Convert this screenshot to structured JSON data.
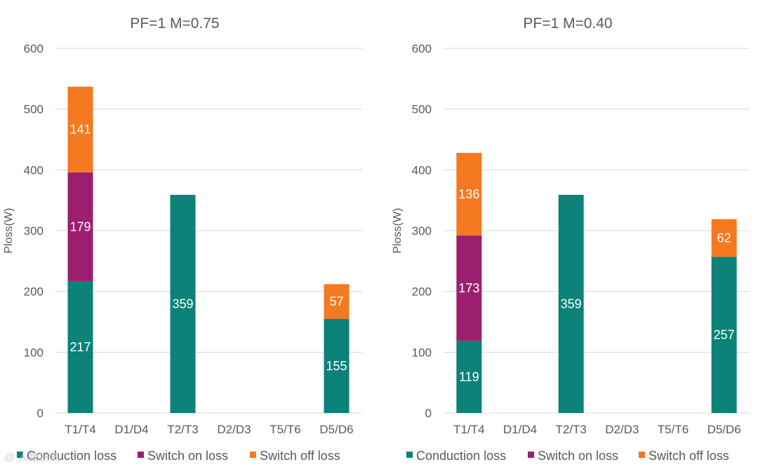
{
  "colors": {
    "conduction": "#0c8278",
    "switch_on": "#9b1f6e",
    "switch_off": "#f47920"
  },
  "watermark": "@ 人数据集",
  "chart_data": [
    {
      "type": "bar",
      "stacked": true,
      "title": "PF=1  M=0.75",
      "ylabel": "Ploss(W)",
      "ylim": [
        0,
        600
      ],
      "yticks": [
        0,
        100,
        200,
        300,
        400,
        500,
        600
      ],
      "categories": [
        "T1/T4",
        "D1/D4",
        "T2/T3",
        "D2/D3",
        "T5/T6",
        "D5/D6"
      ],
      "series": [
        {
          "name": "Conduction loss",
          "color_key": "conduction",
          "values": [
            217,
            0,
            359,
            0,
            0,
            155
          ]
        },
        {
          "name": "Switch on loss",
          "color_key": "switch_on",
          "values": [
            179,
            0,
            0,
            0,
            0,
            0
          ]
        },
        {
          "name": "Switch off loss",
          "color_key": "switch_off",
          "values": [
            141,
            0,
            0,
            0,
            0,
            57
          ]
        }
      ],
      "grid": true,
      "legend": "bottom"
    },
    {
      "type": "bar",
      "stacked": true,
      "title": "PF=1  M=0.40",
      "ylabel": "Ploss(W)",
      "ylim": [
        0,
        600
      ],
      "yticks": [
        0,
        100,
        200,
        300,
        400,
        500,
        600
      ],
      "categories": [
        "T1/T4",
        "D1/D4",
        "T2/T3",
        "D2/D3",
        "T5/T6",
        "D5/D6"
      ],
      "series": [
        {
          "name": "Conduction loss",
          "color_key": "conduction",
          "values": [
            119,
            0,
            359,
            0,
            0,
            257
          ]
        },
        {
          "name": "Switch on loss",
          "color_key": "switch_on",
          "values": [
            173,
            0,
            0,
            0,
            0,
            0
          ]
        },
        {
          "name": "Switch off loss",
          "color_key": "switch_off",
          "values": [
            136,
            0,
            0,
            0,
            0,
            62
          ]
        }
      ],
      "grid": true,
      "legend": "bottom"
    }
  ]
}
